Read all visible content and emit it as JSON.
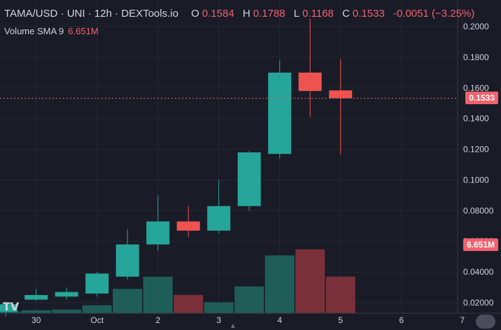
{
  "legend": {
    "symbol": "TAMA/USD · UNI · 12h · DEXTools.io",
    "open_label": "O",
    "open": "0.1584",
    "high_label": "H",
    "high": "0.1788",
    "low_label": "L",
    "low": "0.1168",
    "close_label": "C",
    "close": "0.1533",
    "change": "-0.0051 (−3.25%)"
  },
  "volume_legend": {
    "label": "Volume SMA 9",
    "value": "6.651M"
  },
  "price_badge": "0.1533",
  "volume_badge": "6.651M",
  "tv_logo": "TV",
  "colors": {
    "background": "#191c27",
    "up": "#26a69a",
    "down": "#ef5350",
    "vol_up": "#1f5e58",
    "vol_down": "#7a3038",
    "text": "#d1d4dc",
    "badge": "#f0616d"
  },
  "chart_data": {
    "type": "candlestick",
    "y_ticks": [
      "0.2000",
      "0.1800",
      "0.1600",
      "0.1400",
      "0.1200",
      "0.1000",
      "0.08000",
      "0.06000",
      "0.04000",
      "0.02000"
    ],
    "x_ticks": [
      {
        "label": "30",
        "t": -0.9
      },
      {
        "label": "Oct",
        "t": 0.1
      },
      {
        "label": "2",
        "t": 1.1
      },
      {
        "label": "3",
        "t": 2.1
      },
      {
        "label": "4",
        "t": 3.1
      },
      {
        "label": "5",
        "t": 4.1
      },
      {
        "label": "6",
        "t": 5.1
      },
      {
        "label": "7",
        "t": 6.1
      }
    ],
    "ylim": [
      0.0,
      0.21
    ],
    "current_price": 0.1533,
    "candles": [
      {
        "t": -1.4,
        "o": 0.014,
        "h": 0.021,
        "l": 0.011,
        "c": 0.019,
        "vol": 0.3
      },
      {
        "t": -0.9,
        "o": 0.022,
        "h": 0.029,
        "l": 0.021,
        "c": 0.025,
        "vol": 0.5
      },
      {
        "t": -0.4,
        "o": 0.024,
        "h": 0.03,
        "l": 0.022,
        "c": 0.027,
        "vol": 0.6
      },
      {
        "t": 0.1,
        "o": 0.026,
        "h": 0.04,
        "l": 0.024,
        "c": 0.039,
        "vol": 1.3
      },
      {
        "t": 0.6,
        "o": 0.037,
        "h": 0.068,
        "l": 0.035,
        "c": 0.058,
        "vol": 4.0
      },
      {
        "t": 1.1,
        "o": 0.058,
        "h": 0.09,
        "l": 0.054,
        "c": 0.073,
        "vol": 6.0
      },
      {
        "t": 1.6,
        "o": 0.073,
        "h": 0.083,
        "l": 0.063,
        "c": 0.067,
        "vol": 3.0
      },
      {
        "t": 2.1,
        "o": 0.067,
        "h": 0.1,
        "l": 0.065,
        "c": 0.083,
        "vol": 1.8
      },
      {
        "t": 2.6,
        "o": 0.083,
        "h": 0.119,
        "l": 0.08,
        "c": 0.118,
        "vol": 4.4
      },
      {
        "t": 3.1,
        "o": 0.117,
        "h": 0.178,
        "l": 0.114,
        "c": 0.17,
        "vol": 9.5
      },
      {
        "t": 3.6,
        "o": 0.17,
        "h": 0.205,
        "l": 0.141,
        "c": 0.158,
        "vol": 10.5
      },
      {
        "t": 4.1,
        "o": 0.1584,
        "h": 0.1788,
        "l": 0.1168,
        "c": 0.1533,
        "vol": 6.0
      }
    ],
    "volume_max": 17
  }
}
